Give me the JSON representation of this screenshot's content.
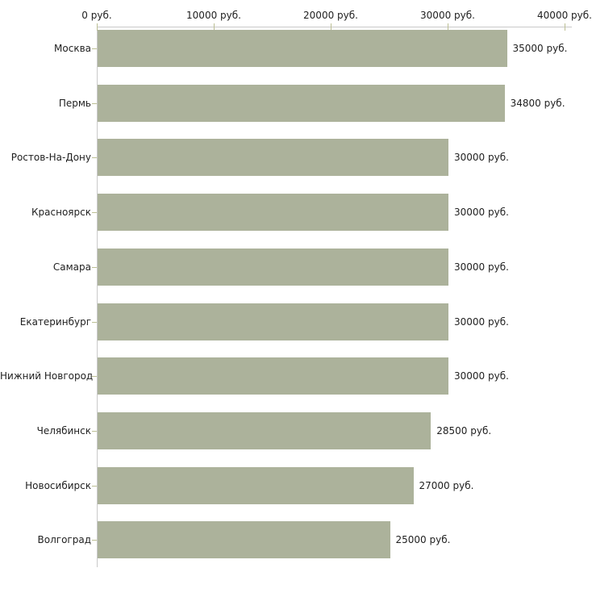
{
  "chart_data": {
    "type": "bar",
    "orientation": "horizontal",
    "categories": [
      "Москва",
      "Пермь",
      "Ростов-На-Дону",
      "Красноярск",
      "Самара",
      "Екатеринбург",
      "Нижний Новгород",
      "Челябинск",
      "Новосибирск",
      "Волгоград"
    ],
    "values": [
      35000,
      34800,
      30000,
      30000,
      30000,
      30000,
      30000,
      28500,
      27000,
      25000
    ],
    "value_labels": [
      "35000 руб.",
      "34800 руб.",
      "30000 руб.",
      "30000 руб.",
      "30000 руб.",
      "30000 руб.",
      "30000 руб.",
      "28500 руб.",
      "27000 руб.",
      "25000 руб."
    ],
    "title": "",
    "xlabel": "",
    "ylabel": "",
    "x_axis": {
      "position": "top",
      "min": 0,
      "max": 40000,
      "ticks": [
        0,
        10000,
        20000,
        30000,
        40000
      ],
      "tick_labels": [
        "0 руб.",
        "10000 руб.",
        "20000 руб.",
        "30000 руб.",
        "40000 руб."
      ]
    },
    "grid": false,
    "legend": "none",
    "colors": {
      "bar": "#acb29b",
      "axis_line": "#c9c9c9",
      "tick": "#bcbf94",
      "text": "#1f1f1f",
      "background": "#ffffff"
    }
  }
}
